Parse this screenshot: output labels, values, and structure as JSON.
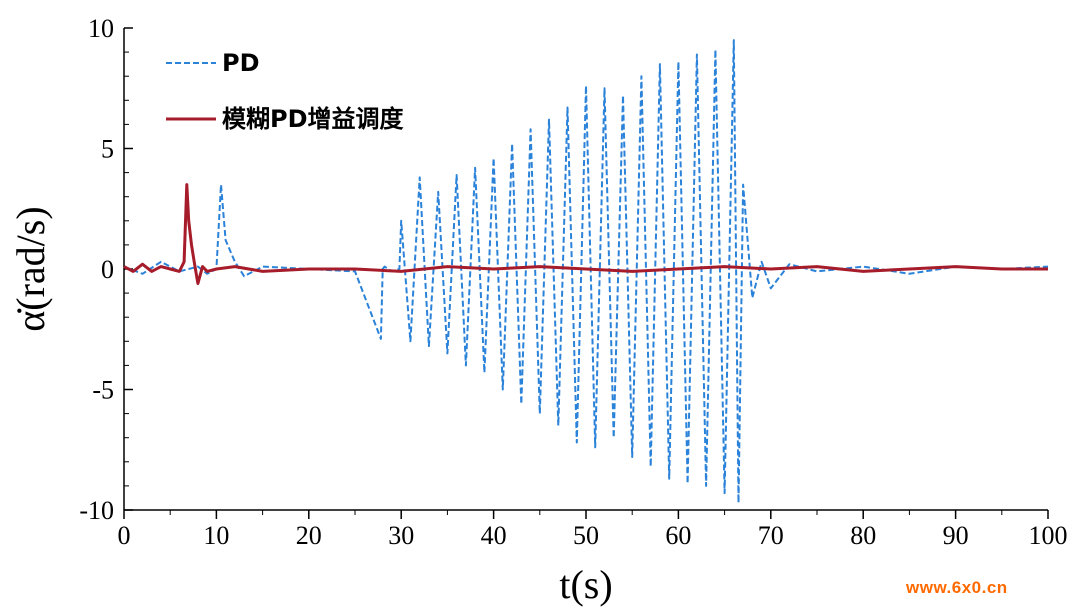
{
  "chart_data": {
    "type": "line",
    "title": "",
    "xlabel": "t(s)",
    "ylabel": "α̇(rad/s)",
    "xlim": [
      0,
      100
    ],
    "ylim": [
      -10,
      10
    ],
    "x_ticks": [
      0,
      10,
      20,
      30,
      40,
      50,
      60,
      70,
      80,
      90,
      100
    ],
    "y_ticks": [
      10,
      5,
      0,
      -5,
      -10
    ],
    "x_tick_labels": [
      "0",
      "10",
      "20",
      "30",
      "40",
      "50",
      "60",
      "70",
      "80",
      "90",
      "100"
    ],
    "y_tick_labels": [
      "10",
      "5",
      "0",
      "-5",
      "-10"
    ],
    "grid": false,
    "legend_position": "top-left",
    "series": [
      {
        "name": "PD",
        "color": "#2b82d9",
        "style": "dashed",
        "x": [
          0,
          2,
          4,
          6,
          8,
          9,
          10,
          10.5,
          11,
          12,
          13,
          15,
          20,
          25,
          27.8,
          28,
          28.2,
          29,
          29.8,
          30,
          31,
          32,
          33,
          34,
          35,
          36,
          37,
          38,
          39,
          40,
          41,
          42,
          43,
          44,
          45,
          46,
          47,
          48,
          49,
          50,
          51,
          52,
          53,
          54,
          55,
          56,
          57,
          58,
          59,
          60,
          61,
          62,
          63,
          64,
          65,
          66,
          66.5,
          67,
          68,
          69,
          70,
          72,
          75,
          80,
          85,
          90,
          95,
          100
        ],
        "y": [
          0.1,
          -0.2,
          0.3,
          -0.1,
          0.1,
          -0.2,
          0.0,
          3.5,
          1.2,
          0.3,
          -0.3,
          0.1,
          0.0,
          -0.1,
          -2.9,
          0.0,
          0.1,
          -0.1,
          0.0,
          2.0,
          -3.0,
          3.8,
          -3.2,
          3.2,
          -3.5,
          3.9,
          -4.0,
          4.2,
          -4.3,
          4.6,
          -5.0,
          5.2,
          -5.6,
          5.8,
          -6.0,
          6.2,
          -6.5,
          6.7,
          -7.2,
          7.6,
          -7.4,
          7.5,
          -7.0,
          7.2,
          -7.8,
          8.0,
          -8.2,
          8.5,
          -8.7,
          8.6,
          -8.9,
          8.9,
          -9.0,
          9.1,
          -9.3,
          9.5,
          -9.7,
          3.5,
          -1.2,
          0.3,
          -0.8,
          0.2,
          -0.1,
          0.1,
          -0.2,
          0.1,
          0.0,
          0.1
        ]
      },
      {
        "name": "模糊PD增益调度",
        "color": "#a61c2a",
        "style": "solid",
        "x": [
          0,
          1,
          2,
          3,
          4,
          5,
          6,
          6.5,
          6.8,
          7,
          7.3,
          7.6,
          8,
          8.5,
          9,
          10,
          12,
          15,
          20,
          25,
          30,
          35,
          40,
          45,
          50,
          55,
          60,
          65,
          70,
          75,
          80,
          85,
          90,
          95,
          100
        ],
        "y": [
          0.1,
          -0.1,
          0.2,
          -0.1,
          0.1,
          0.0,
          -0.1,
          0.3,
          3.5,
          2.0,
          1.0,
          0.3,
          -0.6,
          0.1,
          -0.1,
          0.0,
          0.1,
          -0.1,
          0.0,
          0.0,
          -0.1,
          0.1,
          0.0,
          0.1,
          0.0,
          -0.1,
          0.0,
          0.1,
          0.0,
          0.1,
          -0.1,
          0.0,
          0.1,
          0.0,
          0.0
        ]
      }
    ]
  },
  "watermark": "www.6x0.cn"
}
